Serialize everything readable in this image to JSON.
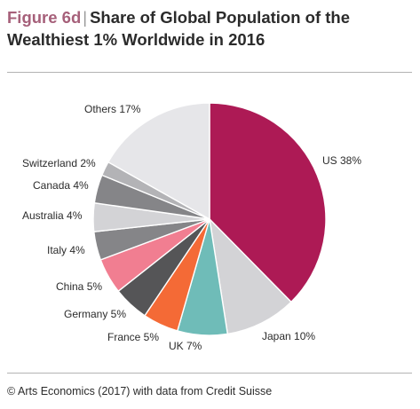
{
  "header": {
    "figure_label": "Figure 6d",
    "separator": "|",
    "title_line1": "Share of Global Population of the",
    "title_line2": "Wealthiest 1% Worldwide in 2016"
  },
  "footer": {
    "source": "© Arts Economics (2017) with data from Credit Suisse"
  },
  "chart_data": {
    "type": "pie",
    "title": "Share of Global Population of the Wealthiest 1% Worldwide in 2016",
    "unit": "%",
    "slices": [
      {
        "label": "US 38%",
        "value": 38,
        "color": "#ad1a55"
      },
      {
        "label": "Japan 10%",
        "value": 10,
        "color": "#d3d3d6"
      },
      {
        "label": "UK 7%",
        "value": 7,
        "color": "#6fbcb8"
      },
      {
        "label": "France 5%",
        "value": 5,
        "color": "#f46a36"
      },
      {
        "label": "Germany 5%",
        "value": 5,
        "color": "#555557"
      },
      {
        "label": "China 5%",
        "value": 5,
        "color": "#f17e91"
      },
      {
        "label": "Italy 4%",
        "value": 4,
        "color": "#858588"
      },
      {
        "label": "Australia 4%",
        "value": 4,
        "color": "#d3d3d6"
      },
      {
        "label": "Canada 4%",
        "value": 4,
        "color": "#858588"
      },
      {
        "label": "Switzerland 2%",
        "value": 2,
        "color": "#b3b3b6"
      },
      {
        "label": "Others 17%",
        "value": 17,
        "color": "#e6e6e9"
      }
    ]
  }
}
